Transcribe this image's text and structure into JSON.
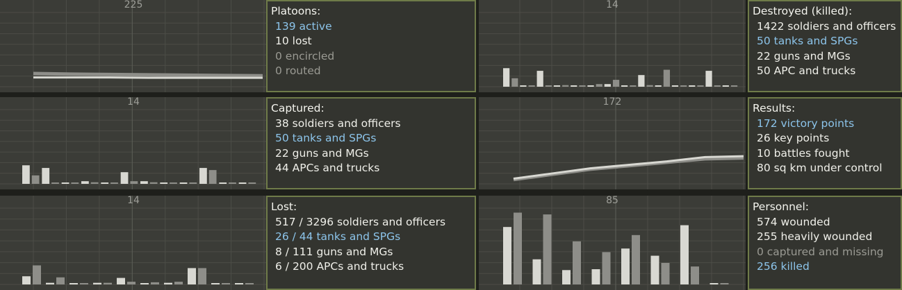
{
  "colors": {
    "highlight": "#8cc4ea",
    "muted": "#9a9a93",
    "normal": "#efefe9",
    "panel_border": "#6f7b49",
    "bar_light": "#d8d8d2",
    "bar_dark": "#8e8e89",
    "grid": "#4c4d47"
  },
  "cells": [
    {
      "id": "platoons",
      "chart": {
        "max_label": "225",
        "chart_data": {
          "type": "line",
          "series": [
            {
              "values": [
                40,
                38,
                37,
                36,
                35,
                34,
                33
              ]
            },
            {
              "values": [
                28,
                28,
                28,
                27,
                27,
                27,
                27
              ]
            }
          ],
          "ylim": [
            0,
            225
          ]
        }
      },
      "panel": {
        "title": "Platoons:",
        "lines": [
          {
            "text": "139 active",
            "style": "highlight"
          },
          {
            "text": "10 lost",
            "style": "normal"
          },
          {
            "text": "0 encircled",
            "style": "muted"
          },
          {
            "text": "0 routed",
            "style": "muted"
          }
        ]
      }
    },
    {
      "id": "destroyed",
      "chart": {
        "max_label": "14",
        "chart_data": {
          "type": "bar",
          "series": [
            {
              "values": [
                3.5,
                0,
                3,
                0,
                0,
                0,
                0.5,
                0,
                2.2,
                0,
                0,
                0,
                3.0,
                0
              ]
            },
            {
              "values": [
                1.6,
                0.2,
                0.2,
                0.3,
                0.2,
                0.5,
                1.3,
                0.1,
                0.3,
                3.2,
                0.1,
                0,
                0,
                0
              ]
            }
          ],
          "ylim": [
            0,
            14
          ]
        }
      },
      "panel": {
        "title": "Destroyed (killed):",
        "lines": [
          {
            "text": "1422 soldiers and officers",
            "style": "normal"
          },
          {
            "text": "50 tanks and SPGs",
            "style": "highlight"
          },
          {
            "text": "22 guns and MGs",
            "style": "normal"
          },
          {
            "text": "50 APC and trucks",
            "style": "normal"
          }
        ]
      }
    },
    {
      "id": "captured",
      "chart": {
        "max_label": "14",
        "chart_data": {
          "type": "bar",
          "series": [
            {
              "values": [
                3.5,
                3,
                0.2,
                0.5,
                0,
                2.2,
                0.5,
                0.2,
                0,
                3.0,
                0.2,
                0
              ]
            },
            {
              "values": [
                1.6,
                0,
                0.2,
                0.3,
                0.2,
                0.5,
                0.3,
                0.2,
                0,
                2.6,
                0,
                0
              ]
            }
          ],
          "ylim": [
            0,
            14
          ]
        }
      },
      "panel": {
        "title": "Captured:",
        "lines": [
          {
            "text": "38 soldiers and officers",
            "style": "normal"
          },
          {
            "text": "50 tanks and SPGs",
            "style": "highlight"
          },
          {
            "text": "22 guns and MGs",
            "style": "normal"
          },
          {
            "text": "44 APCs and trucks",
            "style": "normal"
          }
        ]
      }
    },
    {
      "id": "results",
      "chart": {
        "max_label": "172",
        "chart_data": {
          "type": "line",
          "series": [
            {
              "values": [
                10,
                22,
                34,
                42,
                50,
                58,
                60
              ]
            },
            {
              "values": [
                12,
                24,
                36,
                44,
                52,
                62,
                64
              ]
            }
          ],
          "ylim": [
            0,
            172
          ]
        }
      },
      "panel": {
        "title": "Results:",
        "lines": [
          {
            "text": "172 victory points",
            "style": "highlight"
          },
          {
            "text": "26 key points",
            "style": "normal"
          },
          {
            "text": "10 battles fought",
            "style": "normal"
          },
          {
            "text": "80 sq km under control",
            "style": "normal"
          }
        ]
      }
    },
    {
      "id": "lost",
      "chart": {
        "max_label": "14",
        "chart_data": {
          "type": "bar",
          "series": [
            {
              "values": [
                1.5,
                0.3,
                0.2,
                0.3,
                1.2,
                0.2,
                0.3,
                3.0,
                0.2,
                0
              ]
            },
            {
              "values": [
                3.5,
                1.3,
                0.2,
                0.3,
                0.5,
                0.4,
                0.5,
                3.0,
                0,
                0
              ]
            }
          ],
          "ylim": [
            0,
            14
          ]
        }
      },
      "panel": {
        "title": "Lost:",
        "lines": [
          {
            "text": "517 / 3296 soldiers and officers",
            "style": "normal"
          },
          {
            "text": "26 / 44 tanks and SPGs",
            "style": "highlight"
          },
          {
            "text": "8 / 111 guns and MGs",
            "style": "normal"
          },
          {
            "text": "6 / 200 APCs and trucks",
            "style": "normal"
          }
        ]
      }
    },
    {
      "id": "personnel",
      "chart": {
        "max_label": "85",
        "chart_data": {
          "type": "bar",
          "series": [
            {
              "values": [
                64,
                28,
                16,
                17,
                40,
                32,
                66,
                0
              ]
            },
            {
              "values": [
                80,
                78,
                48,
                36,
                55,
                24,
                20,
                0
              ]
            }
          ],
          "ylim": [
            0,
            85
          ]
        }
      },
      "panel": {
        "title": "Personnel:",
        "lines": [
          {
            "text": "574 wounded",
            "style": "normal"
          },
          {
            "text": "255 heavily wounded",
            "style": "normal"
          },
          {
            "text": "0 captured and missing",
            "style": "muted"
          },
          {
            "text": "256 killed",
            "style": "highlight"
          }
        ]
      }
    }
  ]
}
